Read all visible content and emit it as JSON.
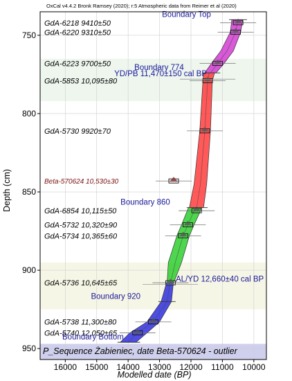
{
  "chart_data": {
    "type": "area",
    "header": "OxCal v4.4.2 Bronk Ramsey (2020); r:5 Atmospheric data from Reimer et al (2020)",
    "xlabel": "Modelled date (BP)",
    "ylabel": "Depth (cm)",
    "xlim": [
      16800,
      9600
    ],
    "ylim": [
      735,
      957
    ],
    "x_reversed": true,
    "x_ticks": [
      16000,
      15000,
      14000,
      13000,
      12000,
      11000,
      10000
    ],
    "y_ticks": [
      750,
      800,
      850,
      900,
      950
    ],
    "grid": true,
    "footer": "P_Sequence Żabieniec, date Beta-570624 - outlier",
    "bands": [
      {
        "from": 765,
        "to": 792,
        "color": "#eef6ee"
      },
      {
        "from": 895,
        "to": 925,
        "color": "#f6f6e6"
      },
      {
        "from": 947,
        "to": 957,
        "color": "#cfcfee"
      }
    ],
    "samples": [
      {
        "label": "GdA-6218 9410±50",
        "depth": 742
      },
      {
        "label": "GdA-6220 9310±50",
        "depth": 748
      },
      {
        "label": "GdA-6223 9700±50",
        "depth": 768
      },
      {
        "label": "GdA-5853 10,095±80",
        "depth": 779
      },
      {
        "label": "GdA-5730 9920±70",
        "depth": 811
      },
      {
        "label": "Beta-570624 10,530±30",
        "depth": 843,
        "outlier": true
      },
      {
        "label": "GdA-6854 10,115±50",
        "depth": 862
      },
      {
        "label": "GdA-5732 10,320±90",
        "depth": 871
      },
      {
        "label": "GdA-5734 10,365±60",
        "depth": 878
      },
      {
        "label": "GdA-5736 10,645±65",
        "depth": 908
      },
      {
        "label": "GdA-5738 11,300±80",
        "depth": 933
      },
      {
        "label": "GdA-5740 12,050±65",
        "depth": 940
      }
    ],
    "boundaries": [
      {
        "label": "Boundary Top",
        "depth": 740
      },
      {
        "label": "Boundary 774",
        "depth": 774
      },
      {
        "label": "Boundary 860",
        "depth": 860
      },
      {
        "label": "Boundary 920",
        "depth": 920
      },
      {
        "label": "Boundary Bottom",
        "depth": 946
      }
    ],
    "annotations": [
      {
        "label": "YD/PB 11,470±150 cal BP",
        "x": 11470,
        "depth": 778
      },
      {
        "label": "AL/YD 12,660±40 cal BP",
        "x": 12660,
        "depth": 909
      }
    ],
    "series": [
      {
        "name": "",
        "color": "#cc22cc",
        "opacity": 0.75,
        "points": [
          {
            "depth": 740,
            "mid": 10500,
            "lo": 10350,
            "hi": 10700
          },
          {
            "depth": 748,
            "mid": 10580,
            "lo": 10420,
            "hi": 10750
          },
          {
            "depth": 760,
            "mid": 10850,
            "lo": 10650,
            "hi": 11050
          },
          {
            "depth": 768,
            "mid": 11150,
            "lo": 10950,
            "hi": 11350
          },
          {
            "depth": 774,
            "mid": 11380,
            "lo": 11200,
            "hi": 11560
          }
        ]
      },
      {
        "name": "",
        "color": "#ff3030",
        "opacity": 0.8,
        "points": [
          {
            "depth": 774,
            "mid": 11420,
            "lo": 11250,
            "hi": 11600
          },
          {
            "depth": 779,
            "mid": 11470,
            "lo": 11320,
            "hi": 11620
          },
          {
            "depth": 811,
            "mid": 11560,
            "lo": 11380,
            "hi": 11720
          },
          {
            "depth": 845,
            "mid": 11700,
            "lo": 11500,
            "hi": 11900
          },
          {
            "depth": 860,
            "mid": 11820,
            "lo": 11600,
            "hi": 12050
          }
        ]
      },
      {
        "name": "",
        "color": "#22cc22",
        "opacity": 0.8,
        "points": [
          {
            "depth": 860,
            "mid": 11850,
            "lo": 11650,
            "hi": 12080
          },
          {
            "depth": 871,
            "mid": 12100,
            "lo": 11900,
            "hi": 12300
          },
          {
            "depth": 878,
            "mid": 12250,
            "lo": 12050,
            "hi": 12450
          },
          {
            "depth": 895,
            "mid": 12500,
            "lo": 12300,
            "hi": 12720
          },
          {
            "depth": 908,
            "mid": 12650,
            "lo": 12550,
            "hi": 12760
          }
        ]
      },
      {
        "name": "",
        "color": "#2222dd",
        "opacity": 0.8,
        "points": [
          {
            "depth": 908,
            "mid": 12670,
            "lo": 12560,
            "hi": 12780
          },
          {
            "depth": 920,
            "mid": 12760,
            "lo": 12620,
            "hi": 12950
          },
          {
            "depth": 933,
            "mid": 13200,
            "lo": 13000,
            "hi": 13400
          },
          {
            "depth": 940,
            "mid": 13700,
            "lo": 13400,
            "hi": 13950
          },
          {
            "depth": 946,
            "mid": 14000,
            "lo": 13750,
            "hi": 14250
          }
        ]
      }
    ]
  }
}
